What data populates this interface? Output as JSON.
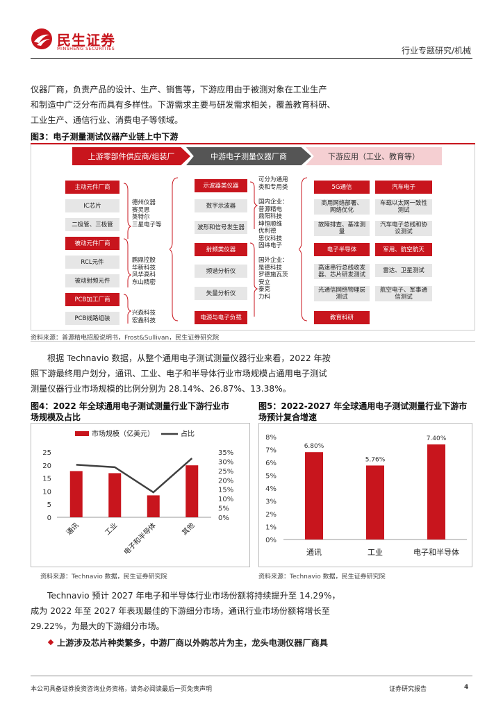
{
  "header": {
    "logo_cn": "民生证券",
    "logo_en": "MINSHENG SECURITIES",
    "category": "行业专题研究/机械"
  },
  "intro_paragraph": {
    "line1": "仪器厂商，负责产品的设计、生产、销售等，下游应用由于被测对象在工业生产",
    "line2": "和制造中广泛分布而具有多样性。下游需求主要与研发需求相关，覆盖教育科研、",
    "line3": "工业生产、通信行业、消费电子等领域。"
  },
  "figure3": {
    "title": "图3：电子测量测试仪器产业链上中下游",
    "stages": [
      "上游零部件供应商/组装厂",
      "中游电子测量仪器厂商",
      "下游应用（工业、教育等）"
    ],
    "upstream_boxes": [
      "主动元件厂商",
      "IC芯片",
      "二极管、三极管",
      "被动元件厂商",
      "RCL元件",
      "被动射频元件",
      "PCB加工厂商",
      "PCB线路组装"
    ],
    "upstream_companies": [
      "德州仪器\n赛灵思\n英特尔\n三星电子等",
      "鹏鼎控股\n华新科技\n风华高科\n东山精密",
      "兴森科技\n宏鑫科技"
    ],
    "midstream_boxes": [
      "示波器类仪器",
      "数字示波器",
      "波形和信号发生器",
      "射频类仪器",
      "频谱分析仪",
      "矢量分析仪",
      "电源与电子负载"
    ],
    "midstream_text": [
      "可分为通用\n类和专用类",
      "国内企业：\n普源精电\n鼎阳科技\n坤恒顺维\n优利德\n思仪科技\n固纬电子",
      "国外企业：\n是德科技\n罗德施瓦茨\n安立\n泰克\n力科"
    ],
    "downstream_left": [
      "5G通信",
      "商用网络部署、\n网络优化",
      "故障排查、基准测\n量",
      "电子半导体",
      "高速串行总线收发\n器、芯片研发测试",
      "光通信网络物理层\n测试",
      "教育科研"
    ],
    "downstream_right": [
      "汽车电子",
      "车载以太网一致性\n测试",
      "汽车电子总线和协\n议测试",
      "军用、航空航天",
      "雷达、卫星测试",
      "航空电子、军事通\n信测试"
    ],
    "source": "资料来源：普源精电招股说明书，Frost&Sullivan，民生证券研究院"
  },
  "paragraph2": {
    "line1": "根据 Technavio 数据，从整个通用电子测试测量仪器行业来看，2022 年按",
    "line2": "照下游最终用户划分，通讯、工业、电子和半导体行业市场规模占通用电子测试",
    "line3": "测量仪器行业市场规模的比例分别为 28.14%、26.87%、13.38%。"
  },
  "figure4": {
    "title_line1": "图4：2022 年全球通用电子测试测量行业下游行业市",
    "title_line2": "场规模及占比",
    "source": "资料来源：Technavio 数据，民生证券研究院"
  },
  "figure5": {
    "title_line1": "图5：2022-2027 年全球通用电子测试测量行业下游市",
    "title_line2": "场预计复合增速",
    "source": "资料来源：Technavio 数据，民生证券研究院"
  },
  "chart_data": [
    {
      "type": "bar",
      "categories": [
        "通讯",
        "工业",
        "电子和半导体",
        "其他"
      ],
      "series": [
        {
          "name": "市场规模（亿美元）",
          "values": [
            17.7,
            16.9,
            8.4,
            19.9
          ],
          "axis": "left",
          "kind": "bar",
          "color": "#c8151d"
        },
        {
          "name": "占比",
          "values": [
            28.14,
            26.87,
            13.38,
            31.61
          ],
          "axis": "right",
          "kind": "line",
          "color": "#404040"
        }
      ],
      "yticks_left": [
        "0",
        "5",
        "10",
        "15",
        "20",
        "25"
      ],
      "yticks_right": [
        "0%",
        "5%",
        "10%",
        "15%",
        "20%",
        "25%",
        "30%",
        "35%"
      ],
      "ylim_left": [
        0,
        25
      ],
      "ylim_right": [
        0,
        35
      ],
      "legend": "top"
    },
    {
      "type": "bar",
      "categories": [
        "通讯",
        "工业",
        "电子和半导体"
      ],
      "values": [
        6.8,
        5.76,
        7.4
      ],
      "labels": [
        "6.80%",
        "5.76%",
        "7.40%"
      ],
      "yticks": [
        "0%",
        "1%",
        "2%",
        "3%",
        "4%",
        "5%",
        "6%",
        "7%",
        "8%"
      ],
      "ylim": [
        0,
        8
      ],
      "color": "#c8151d"
    }
  ],
  "paragraph3": {
    "line1": "Technavio 预计 2027 年电子和半导体行业市场份额将持续提升至 14.29%，",
    "line2": "成为 2022 年至 2027 年表现最佳的下游细分市场，通讯行业市场份额将增长至",
    "line3": "29.22%，为最大的下游细分市场。"
  },
  "section_heading": "上游涉及芯片种类繁多，中游厂商以外购芯片为主，龙头电测仪器厂商具",
  "footer": {
    "disclaimer": "本公司具备证券投资咨询业务资格，请务必阅读最后一页免责声明",
    "report_type": "证券研究报告",
    "page": "4"
  }
}
